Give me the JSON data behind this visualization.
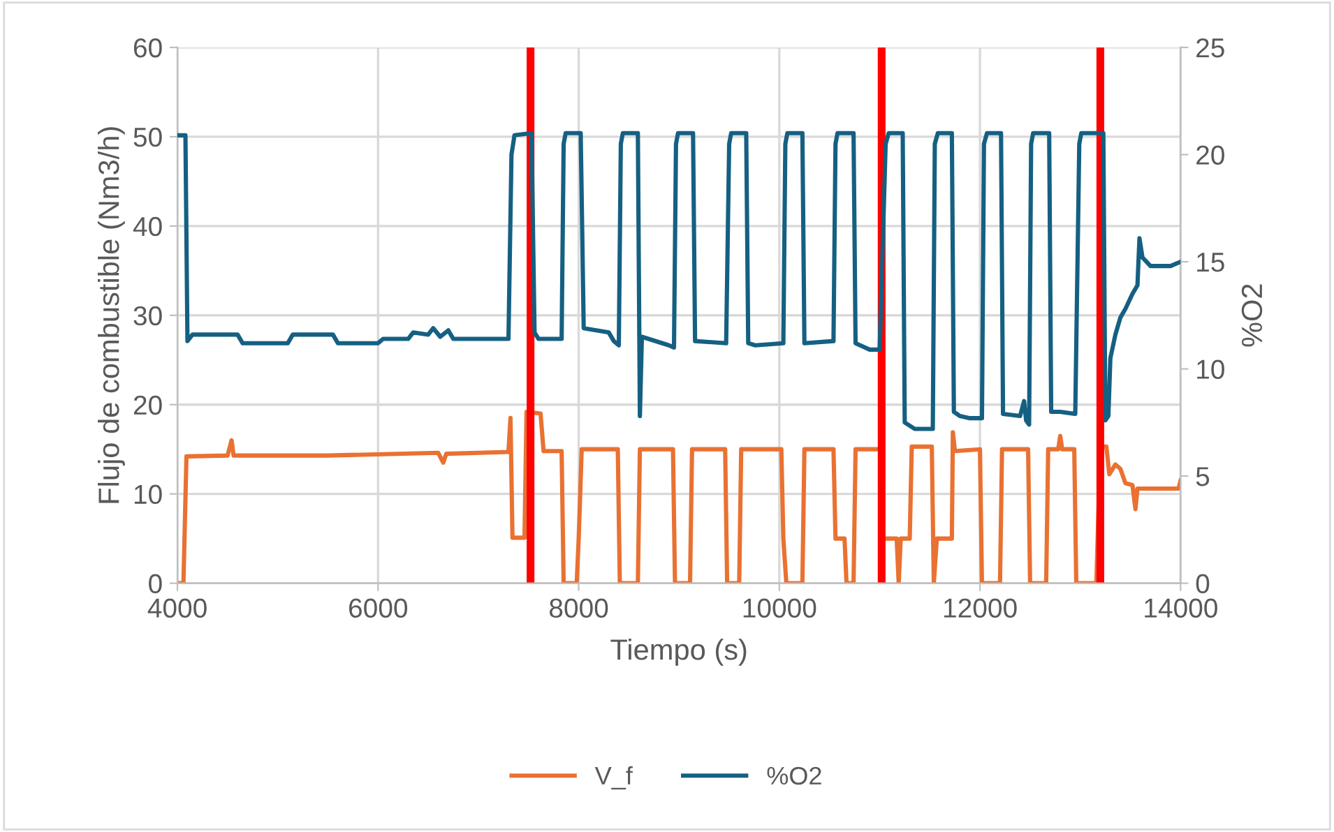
{
  "chart_data": {
    "type": "line",
    "xlabel": "Tiempo (s)",
    "ylabel": "Flujo de combustible (Nm3/h)",
    "y2label": "%O2",
    "xlim": [
      4000,
      14000
    ],
    "xticks": [
      4000,
      6000,
      8000,
      10000,
      12000,
      14000
    ],
    "ylim": [
      0,
      60
    ],
    "yticks": [
      0,
      10,
      20,
      30,
      40,
      50,
      60
    ],
    "y2lim": [
      0,
      25
    ],
    "y2ticks": [
      0,
      5,
      10,
      15,
      20,
      25
    ],
    "grid": true,
    "legend": "bottom",
    "marker": "none",
    "line_style": "solid",
    "ref_lines": [
      {
        "axis": "x",
        "value": 7520,
        "label": null,
        "color": "#ff0000"
      },
      {
        "axis": "x",
        "value": 11020,
        "label": null,
        "color": "#ff0000"
      },
      {
        "axis": "x",
        "value": 13200,
        "label": null,
        "color": "#ff0000"
      }
    ],
    "series": [
      {
        "name": "V_f",
        "color": "#e97132",
        "axis": "y",
        "x": [
          4000,
          4060,
          4090,
          4500,
          4540,
          4560,
          5500,
          6600,
          6650,
          6680,
          7300,
          7320,
          7340,
          7460,
          7480,
          7620,
          7650,
          7830,
          7850,
          7980,
          8000,
          8030,
          8390,
          8410,
          8590,
          8610,
          8940,
          8960,
          9110,
          9130,
          9460,
          9480,
          9600,
          9620,
          10020,
          10040,
          10070,
          10230,
          10250,
          10540,
          10560,
          10650,
          10670,
          10740,
          10760,
          11010,
          11030,
          11170,
          11190,
          11210,
          11300,
          11320,
          11520,
          11540,
          11570,
          11720,
          11730,
          11750,
          12000,
          12020,
          12200,
          12220,
          12480,
          12500,
          12660,
          12680,
          12780,
          12800,
          12820,
          12940,
          12960,
          13160,
          13200,
          13260,
          13290,
          13350,
          13400,
          13450,
          13520,
          13550,
          13570,
          13800,
          13980,
          14000
        ],
        "values": [
          0,
          0,
          14.2,
          14.3,
          16.0,
          14.3,
          14.3,
          14.6,
          13.5,
          14.5,
          14.7,
          18.5,
          5.1,
          5.1,
          19.2,
          19.0,
          14.8,
          14.8,
          0,
          0,
          5.0,
          15.0,
          15.0,
          0,
          0,
          15.0,
          15.0,
          0,
          0,
          15.0,
          15.0,
          0,
          0,
          15.0,
          15.0,
          5.0,
          0,
          0,
          15.0,
          15.0,
          5.0,
          5.0,
          0,
          0,
          15.0,
          15.0,
          5.0,
          5.0,
          0,
          5.0,
          5.0,
          15.3,
          15.3,
          0,
          5.0,
          5.0,
          16.9,
          14.8,
          15.0,
          0,
          0,
          15.0,
          15.0,
          0,
          0,
          15.0,
          15.0,
          16.5,
          15.0,
          15.0,
          0,
          0,
          15.3,
          15.3,
          12.2,
          13.3,
          12.8,
          11.2,
          11.0,
          8.3,
          10.6,
          10.6,
          10.6,
          11.5
        ]
      },
      {
        "name": "%O2",
        "color": "#156082",
        "axis": "y2",
        "x": [
          4000,
          4080,
          4100,
          4150,
          4600,
          4650,
          5100,
          5150,
          5550,
          5600,
          6000,
          6050,
          6300,
          6350,
          6500,
          6550,
          6620,
          6700,
          6750,
          7300,
          7330,
          7360,
          7530,
          7560,
          7600,
          7830,
          7850,
          7870,
          8020,
          8050,
          8300,
          8350,
          8400,
          8420,
          8440,
          8590,
          8610,
          8630,
          8900,
          8950,
          8970,
          8990,
          9140,
          9160,
          9470,
          9500,
          9520,
          9670,
          9690,
          9760,
          10040,
          10060,
          10080,
          10230,
          10250,
          10540,
          10560,
          10580,
          10740,
          10760,
          10900,
          11000,
          11060,
          11090,
          11230,
          11250,
          11350,
          11530,
          11550,
          11580,
          11720,
          11740,
          11800,
          11900,
          12020,
          12040,
          12070,
          12210,
          12230,
          12400,
          12440,
          12460,
          12490,
          12510,
          12530,
          12690,
          12710,
          12800,
          12950,
          12990,
          13010,
          13230,
          13250,
          13280,
          13300,
          13350,
          13400,
          13450,
          13520,
          13570,
          13590,
          13620,
          13700,
          13900,
          14000
        ],
        "values": [
          20.9,
          20.9,
          11.3,
          11.6,
          11.6,
          11.2,
          11.2,
          11.6,
          11.6,
          11.2,
          11.2,
          11.4,
          11.4,
          11.7,
          11.6,
          11.9,
          11.5,
          11.8,
          11.4,
          11.4,
          20.0,
          20.9,
          21.0,
          11.7,
          11.4,
          11.4,
          20.5,
          21.0,
          21.0,
          11.9,
          11.7,
          11.3,
          11.1,
          20.5,
          21.0,
          21.0,
          7.8,
          11.5,
          11.1,
          11.0,
          20.5,
          21.0,
          21.0,
          11.3,
          11.2,
          20.5,
          21.0,
          21.0,
          11.2,
          11.1,
          11.2,
          20.5,
          21.0,
          21.0,
          11.2,
          11.3,
          20.5,
          21.0,
          21.0,
          11.2,
          10.9,
          10.9,
          20.5,
          21.0,
          21.0,
          7.5,
          7.2,
          7.2,
          20.5,
          21.0,
          21.0,
          8.0,
          7.8,
          7.7,
          7.7,
          20.5,
          21.0,
          21.0,
          7.9,
          7.8,
          8.5,
          7.6,
          7.4,
          20.5,
          21.0,
          21.0,
          8.0,
          8.0,
          7.9,
          20.5,
          21.0,
          21.0,
          7.6,
          7.8,
          10.5,
          11.6,
          12.4,
          12.8,
          13.5,
          13.9,
          16.1,
          15.2,
          14.8,
          14.8,
          15.0
        ]
      }
    ]
  }
}
